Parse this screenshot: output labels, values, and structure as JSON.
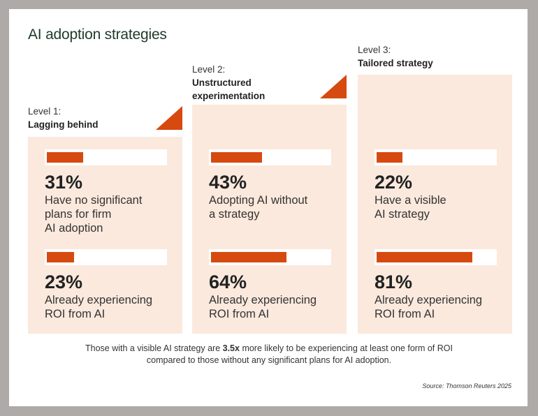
{
  "title": "AI adoption strategies",
  "colors": {
    "accent": "#d64a10",
    "panel": "#fbe9dd",
    "title": "#1f3a2a"
  },
  "chart_data": {
    "type": "bar",
    "levels": [
      {
        "level": "Level 1:",
        "name": "Lagging behind",
        "metrics": [
          {
            "value": 31,
            "label": "31%",
            "desc": [
              "Have no significant",
              "plans for firm",
              "AI adoption"
            ]
          },
          {
            "value": 23,
            "label": "23%",
            "desc": [
              "Already experiencing",
              "ROI from AI"
            ]
          }
        ]
      },
      {
        "level": "Level 2:",
        "name": "Unstructured experimentation",
        "metrics": [
          {
            "value": 43,
            "label": "43%",
            "desc": [
              "Adopting AI without",
              "a strategy"
            ]
          },
          {
            "value": 64,
            "label": "64%",
            "desc": [
              "Already experiencing",
              "ROI from AI"
            ]
          }
        ]
      },
      {
        "level": "Level 3:",
        "name": "Tailored strategy",
        "metrics": [
          {
            "value": 22,
            "label": "22%",
            "desc": [
              "Have a visible",
              "AI strategy"
            ]
          },
          {
            "value": 81,
            "label": "81%",
            "desc": [
              "Already experiencing",
              "ROI from AI"
            ]
          }
        ]
      }
    ],
    "xlim": [
      0,
      100
    ]
  },
  "footnote": {
    "pre": "Those with a visible AI strategy are ",
    "bold": "3.5x",
    "post": " more likely to be experiencing at least one form of ROI",
    "line2": "compared to those without any significant plans for AI adoption."
  },
  "source": "Source: Thomson Reuters 2025"
}
